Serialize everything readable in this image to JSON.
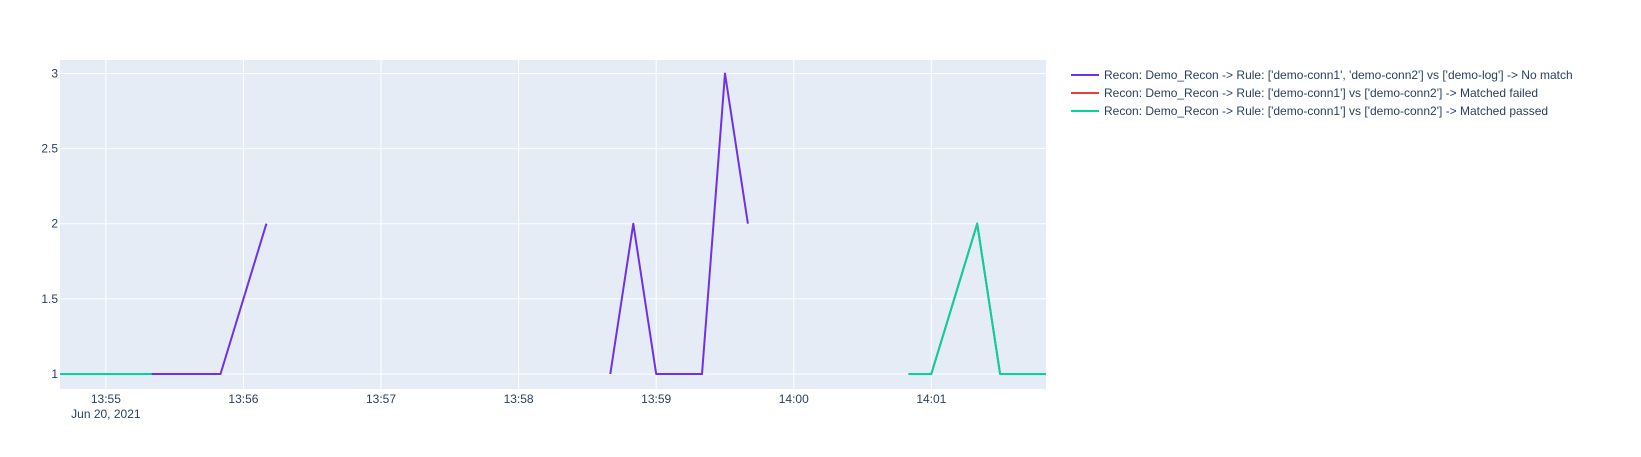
{
  "chart_data": {
    "type": "line",
    "xlabel": "",
    "ylabel": "",
    "ylim": [
      0.9,
      3.09
    ],
    "xlim": [
      "2021-06-20 13:54:40",
      "2021-06-20 14:01:50"
    ],
    "grid": true,
    "background": "#e5ecf6",
    "x_ticks": [
      {
        "t": "2021-06-20 13:55:00",
        "label": "13:55",
        "sublabel": "Jun 20, 2021"
      },
      {
        "t": "2021-06-20 13:56:00",
        "label": "13:56"
      },
      {
        "t": "2021-06-20 13:57:00",
        "label": "13:57"
      },
      {
        "t": "2021-06-20 13:58:00",
        "label": "13:58"
      },
      {
        "t": "2021-06-20 13:59:00",
        "label": "13:59"
      },
      {
        "t": "2021-06-20 14:00:00",
        "label": "14:00"
      },
      {
        "t": "2021-06-20 14:01:00",
        "label": "14:01"
      }
    ],
    "y_ticks": [
      {
        "v": 1,
        "label": "1"
      },
      {
        "v": 1.5,
        "label": "1.5"
      },
      {
        "v": 2,
        "label": "2"
      },
      {
        "v": 2.5,
        "label": "2.5"
      },
      {
        "v": 3,
        "label": "3"
      }
    ],
    "legend_position": "right",
    "series": [
      {
        "name": "Recon: Demo_Recon -> Rule: ['demo-conn1', 'demo-conn2'] vs ['demo-log'] -> No match",
        "color": "#636efa",
        "line_color": "#7030e8",
        "segments": [
          {
            "x": [
              "2021-06-20 13:54:40",
              "2021-06-20 13:55:00",
              "2021-06-20 13:55:20",
              "2021-06-20 13:55:40",
              "2021-06-20 13:55:50",
              "2021-06-20 13:56:10"
            ],
            "y": [
              1,
              1,
              1,
              1,
              1,
              2
            ]
          },
          {
            "x": [
              "2021-06-20 13:58:40",
              "2021-06-20 13:58:50",
              "2021-06-20 13:59:00",
              "2021-06-20 13:59:10",
              "2021-06-20 13:59:20",
              "2021-06-20 13:59:30",
              "2021-06-20 13:59:40"
            ],
            "y": [
              1,
              2,
              1,
              1,
              1,
              3,
              2
            ]
          }
        ]
      },
      {
        "name": "Recon: Demo_Recon -> Rule: ['demo-conn1'] vs ['demo-conn2'] -> Matched failed",
        "color": "#ef553b",
        "line_color": "#ef3b3b",
        "segments": [
          {
            "x": [
              "2021-06-20 14:00:50",
              "2021-06-20 14:01:00",
              "2021-06-20 14:01:20",
              "2021-06-20 14:01:30",
              "2021-06-20 14:01:40",
              "2021-06-20 14:01:50"
            ],
            "y": [
              1,
              1,
              2,
              1,
              1,
              1
            ]
          }
        ]
      },
      {
        "name": "Recon: Demo_Recon -> Rule: ['demo-conn1'] vs ['demo-conn2'] -> Matched passed",
        "color": "#00cc96",
        "line_color": "#00d4a0",
        "segments": [
          {
            "x": [
              "2021-06-20 13:54:40",
              "2021-06-20 13:55:00",
              "2021-06-20 13:55:20"
            ],
            "y": [
              1,
              1,
              1
            ]
          },
          {
            "x": [
              "2021-06-20 14:00:50",
              "2021-06-20 14:01:00",
              "2021-06-20 14:01:20",
              "2021-06-20 14:01:30",
              "2021-06-20 14:01:40",
              "2021-06-20 14:01:50"
            ],
            "y": [
              1,
              1,
              2,
              1,
              1,
              1
            ]
          }
        ]
      }
    ]
  }
}
